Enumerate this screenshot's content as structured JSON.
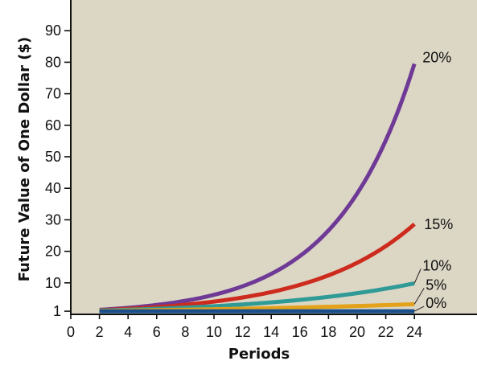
{
  "chart_data": {
    "type": "line",
    "xlabel": "Periods",
    "ylabel": "Future Value of One Dollar ($)",
    "xlim": [
      0,
      25
    ],
    "ylim": [
      0,
      95
    ],
    "x_ticks": [
      0,
      2,
      4,
      6,
      8,
      10,
      12,
      14,
      16,
      18,
      20,
      22,
      24
    ],
    "y_ticks": [
      1,
      10,
      20,
      30,
      40,
      50,
      60,
      70,
      80,
      90
    ],
    "x_start": 2,
    "x_end": 24,
    "grid": false,
    "series": [
      {
        "name": "0%",
        "rate": 0.0,
        "color": "#1b4f8c",
        "values_at_24": 1.0
      },
      {
        "name": "5%",
        "rate": 0.05,
        "color": "#e3a21a",
        "values_at_24": 3.2
      },
      {
        "name": "10%",
        "rate": 0.1,
        "color": "#2f9a96",
        "values_at_24": 9.8
      },
      {
        "name": "15%",
        "rate": 0.15,
        "color": "#cc2b1d",
        "values_at_24": 28.6
      },
      {
        "name": "20%",
        "rate": 0.2,
        "color": "#6e3a96",
        "values_at_24": 79.5
      }
    ],
    "background_color": "#dcd6c5"
  }
}
